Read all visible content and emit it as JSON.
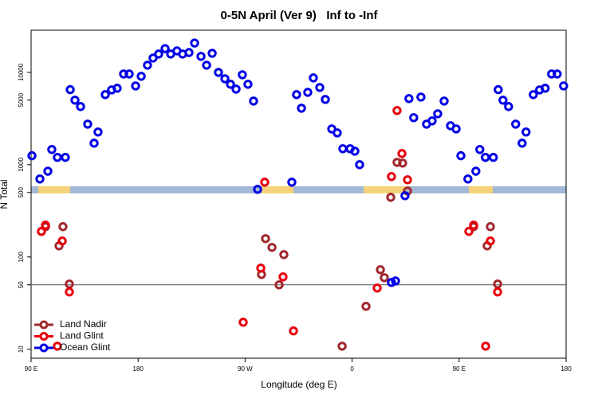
{
  "chart_data": {
    "type": "scatter",
    "title": "0-5N April (Ver 9)   Inf to -Inf",
    "x_label": "Longitude (deg E)",
    "y_label": "N Total",
    "log_y": true,
    "xlim": [
      90,
      540
    ],
    "ylim": [
      8,
      28600
    ],
    "xticks": [
      {
        "value": 90,
        "label": "90 E"
      },
      180,
      {
        "value": 270,
        "label": "90 W"
      },
      {
        "value": 360,
        "label": "0"
      },
      {
        "value": 450,
        "label": "90 E"
      },
      {
        "value": 540,
        "label": "180"
      }
    ],
    "yticks": [
      10,
      50,
      100,
      500,
      1000,
      5000,
      10000
    ],
    "hline": 50,
    "legend": "lower left",
    "series": [
      {
        "name": "Land Nadir",
        "color": "#a0282d",
        "x": [
          102.1,
          113.5,
          116.8,
          122.2,
          283.8,
          287.2,
          292.6,
          298.6,
          302.6,
          351.6,
          371.7,
          383.8,
          387.1,
          392.5,
          397.8,
          402.5,
          406.6,
          462.2,
          473.6,
          476.3,
          482.4
        ],
        "values": [
          213,
          132,
          213,
          50.9,
          64.6,
          158,
          127,
          49.9,
          106,
          10.8,
          29.2,
          72.8,
          59.7,
          443,
          1060,
          1040,
          519,
          213,
          132,
          213,
          50.9
        ]
      },
      {
        "name": "Land Glint",
        "color": "#e8000b",
        "x": [
          98.7,
          102.1,
          112.1,
          116.2,
          122.2,
          268.4,
          283.2,
          286.5,
          301.9,
          310.7,
          381.1,
          393.1,
          397.8,
          401.9,
          406.6,
          458.2,
          462.2,
          472.3,
          476.3,
          482.4
        ],
        "values": [
          189,
          221,
          10.8,
          149,
          41.8,
          19.6,
          75.7,
          646,
          60.9,
          15.8,
          46.1,
          743,
          3860,
          1320,
          686,
          189,
          221,
          10.8,
          149,
          41.8
        ]
      },
      {
        "name": "Ocean Glint",
        "color": "#0000e6",
        "x": [
          90.7,
          97.4,
          104.1,
          107.4,
          112.1,
          118.8,
          122.9,
          126.9,
          131.6,
          137.6,
          143.0,
          146.3,
          152.4,
          157.7,
          162.4,
          167.8,
          172.5,
          177.9,
          182.6,
          187.9,
          192.6,
          197.3,
          202.7,
          207.4,
          212.7,
          217.4,
          222.8,
          227.5,
          232.9,
          237.6,
          242.3,
          247.6,
          253.0,
          257.7,
          262.4,
          267.7,
          272.4,
          277.1,
          280.5,
          309.3,
          313.3,
          317.4,
          322.7,
          327.4,
          332.8,
          337.5,
          342.9,
          347.5,
          352.2,
          358.3,
          362.3,
          366.3,
          393.1,
          396.5,
          404.5,
          407.8,
          411.8,
          417.9,
          422.6,
          427.3,
          432.0,
          437.4,
          442.8,
          447.5,
          451.5,
          457.4,
          464.1,
          467.4,
          472.1,
          478.8,
          482.9,
          486.9,
          491.6,
          497.6,
          503.0,
          506.3,
          512.4,
          517.7,
          522.4,
          527.8,
          532.5,
          537.9
        ],
        "values": [
          1250,
          700,
          850,
          1460,
          1200,
          1200,
          6500,
          5000,
          4260,
          2750,
          1710,
          2260,
          5740,
          6460,
          6730,
          9610,
          9610,
          7130,
          9060,
          11960,
          14300,
          15800,
          18100,
          15800,
          17100,
          15800,
          16400,
          20800,
          14900,
          11960,
          16100,
          10000,
          8530,
          7430,
          6590,
          9420,
          7430,
          4890,
          541,
          646,
          5740,
          4090,
          6080,
          8710,
          6860,
          5090,
          2440,
          2210,
          1490,
          1490,
          1400,
          1000,
          53,
          55,
          461,
          5200,
          3230,
          5400,
          2750,
          2980,
          3560,
          4890,
          2640,
          2440,
          1250,
          700,
          850,
          1460,
          1200,
          1200,
          6500,
          5000,
          4260,
          2750,
          1710,
          2260,
          5740,
          6460,
          6730,
          9610,
          9610,
          7130
        ]
      }
    ]
  }
}
